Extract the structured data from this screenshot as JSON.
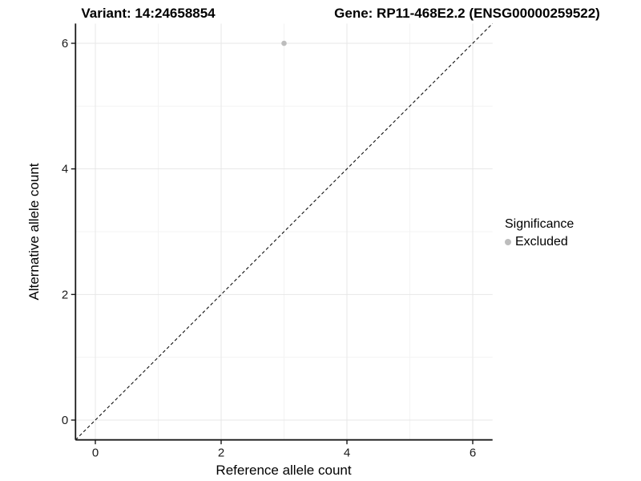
{
  "figure": {
    "title_variant": "Variant: 14:24658854",
    "title_gene": "Gene: RP11-468E2.2 (ENSG00000259522)"
  },
  "axes": {
    "x_label": "Reference allele count",
    "y_label": "Alternative allele count"
  },
  "legend": {
    "title": "Significance",
    "entries": [
      {
        "label": "Excluded",
        "color": "#bdbdbd",
        "marker": "circle-icon"
      }
    ]
  },
  "chart_data": {
    "type": "scatter",
    "title": "Variant: 14:24658854   Gene: RP11-468E2.2 (ENSG00000259522)",
    "xlabel": "Reference allele count",
    "ylabel": "Alternative allele count",
    "xlim": [
      -0.315,
      6.315
    ],
    "ylim": [
      -0.315,
      6.315
    ],
    "x_ticks": [
      0,
      2,
      4,
      6
    ],
    "y_ticks": [
      0,
      2,
      4,
      6
    ],
    "x_minor_ticks": [
      1,
      3,
      5
    ],
    "y_minor_ticks": [
      1,
      3,
      5
    ],
    "grid": "major+minor",
    "legend_position": "right",
    "series": [
      {
        "name": "Excluded",
        "color": "#bdbdbd",
        "marker": "circle",
        "points": [
          {
            "x": 3,
            "y": 6
          }
        ]
      }
    ],
    "reference_line": {
      "type": "identity",
      "style": "dashed",
      "color": "#111111",
      "from": [
        -0.315,
        -0.315
      ],
      "to": [
        6.315,
        6.315
      ]
    },
    "colors": {
      "grid_major": "#e7e7e7",
      "grid_minor": "#f3f3f3",
      "axis": "#1a1a1a",
      "tick_label": "#1a1a1a"
    }
  }
}
